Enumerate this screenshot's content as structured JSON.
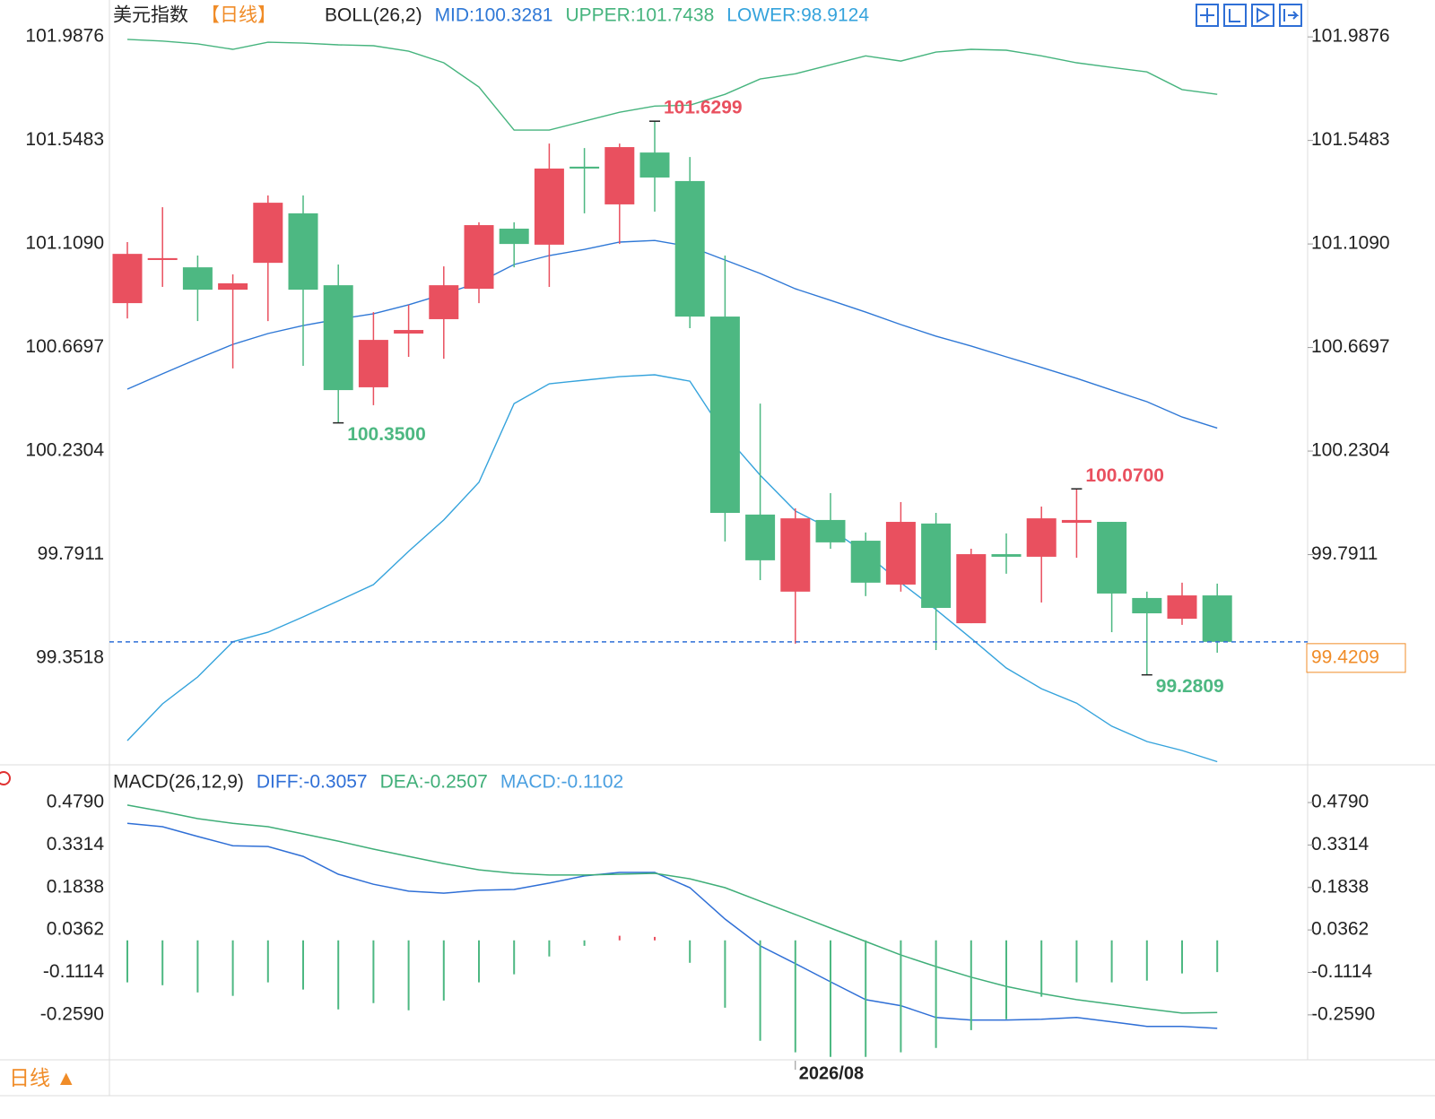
{
  "header": {
    "symbol": "美元指数",
    "period": "【日线】"
  },
  "period_button": "日线 ▲",
  "chart_data": [
    {
      "type": "candlestick",
      "indicator": "BOLL(26,2)",
      "categories": [
        null,
        null,
        null,
        null,
        null,
        null,
        null,
        null,
        null,
        null,
        null,
        null,
        null,
        null,
        null,
        null,
        null,
        null,
        null,
        "2026/08",
        null,
        null,
        null,
        null,
        null,
        null,
        null,
        null,
        null,
        null,
        null,
        null
      ],
      "open": [
        100.858,
        101.041,
        101.01,
        100.915,
        101.029,
        101.239,
        100.934,
        100.501,
        100.729,
        100.79,
        100.919,
        101.174,
        101.106,
        101.437,
        101.277,
        101.497,
        101.376,
        100.801,
        99.961,
        99.634,
        99.938,
        99.85,
        99.664,
        99.923,
        99.5,
        99.793,
        99.782,
        99.926,
        99.93,
        99.607,
        99.519,
        99.618
      ],
      "high": [
        101.117,
        101.265,
        101.06,
        100.98,
        101.315,
        101.315,
        101.022,
        100.82,
        100.851,
        101.014,
        101.201,
        101.201,
        101.535,
        101.516,
        101.535,
        101.6299,
        101.478,
        101.06,
        100.432,
        99.987,
        100.052,
        99.885,
        100.014,
        99.968,
        99.816,
        99.881,
        99.995,
        100.07,
        99.93,
        99.634,
        99.672,
        99.668
      ],
      "low": [
        100.793,
        100.927,
        100.782,
        100.581,
        100.782,
        100.592,
        100.35,
        100.425,
        100.63,
        100.622,
        100.858,
        101.01,
        100.927,
        101.239,
        101.109,
        101.246,
        100.752,
        99.847,
        99.683,
        99.413,
        99.816,
        99.615,
        99.634,
        99.386,
        99.5,
        99.71,
        99.588,
        99.778,
        99.462,
        99.2809,
        99.493,
        99.375
      ],
      "close": [
        101.067,
        101.049,
        100.915,
        100.942,
        101.284,
        100.915,
        100.489,
        100.702,
        100.744,
        100.934,
        101.189,
        101.109,
        101.429,
        101.429,
        101.52,
        101.391,
        100.801,
        99.968,
        99.767,
        99.945,
        99.843,
        99.672,
        99.93,
        99.565,
        99.793,
        99.782,
        99.945,
        99.938,
        99.626,
        99.542,
        99.618,
        99.4209
      ],
      "up_color": "#e9505f",
      "down_color": "#4db882",
      "series": [
        {
          "name": "MID:100.3281",
          "color": "#2f78d6",
          "values": [
            100.493,
            100.558,
            100.622,
            100.683,
            100.729,
            100.763,
            100.79,
            100.813,
            100.851,
            100.896,
            100.946,
            101.022,
            101.06,
            101.086,
            101.117,
            101.124,
            101.098,
            101.041,
            100.984,
            100.919,
            100.87,
            100.82,
            100.767,
            100.718,
            100.676,
            100.63,
            100.585,
            100.539,
            100.489,
            100.44,
            100.375,
            100.3281
          ]
        },
        {
          "name": "UPPER:101.7438",
          "color": "#46b47e",
          "values": [
            101.977,
            101.97,
            101.958,
            101.935,
            101.965,
            101.961,
            101.954,
            101.95,
            101.927,
            101.878,
            101.775,
            101.592,
            101.592,
            101.63,
            101.668,
            101.694,
            101.698,
            101.744,
            101.809,
            101.831,
            101.869,
            101.907,
            101.885,
            101.923,
            101.935,
            101.931,
            101.907,
            101.878,
            101.858,
            101.839,
            101.764,
            101.7438
          ]
        },
        {
          "name": "LOWER:98.9124",
          "color": "#35a3dc",
          "values": [
            99.002,
            99.158,
            99.272,
            99.421,
            99.462,
            99.527,
            99.595,
            99.664,
            99.805,
            99.938,
            100.098,
            100.432,
            100.516,
            100.531,
            100.546,
            100.554,
            100.527,
            100.299,
            100.128,
            99.976,
            99.9,
            99.797,
            99.672,
            99.558,
            99.436,
            99.31,
            99.222,
            99.161,
            99.063,
            98.998,
            98.96,
            98.9124
          ]
        }
      ],
      "annotations": [
        101.6299,
        {
          "value": 100.35,
          "label": "100.3500"
        },
        {
          "value": 100.07,
          "label": "100.0700"
        },
        99.2809
      ],
      "price_line_color": "#2f6fd6",
      "price_box_color": "#f08c28",
      "ylim": [
        98.903,
        102.03
      ],
      "yticks": [
        101.9876,
        101.5483,
        {
          "value": 101.109,
          "label": "101.1090"
        },
        100.6697,
        100.2304,
        99.7911,
        99.3518
      ],
      "grid": false
    },
    {
      "type": "macd",
      "title": "MACD(26,12,9)",
      "up_color": "#e9505f",
      "down_color": "#4db882",
      "series": [
        {
          "name": "DIFF:-0.3057",
          "color": "#2f6fd6",
          "style": "line",
          "values": [
            0.407,
            0.395,
            0.361,
            0.329,
            0.326,
            0.292,
            0.23,
            0.195,
            0.171,
            0.164,
            0.174,
            0.177,
            0.199,
            0.224,
            0.236,
            0.236,
            0.183,
            0.074,
            -0.019,
            -0.081,
            -0.144,
            -0.206,
            -0.227,
            -0.268,
            -0.277,
            -0.277,
            -0.274,
            -0.268,
            -0.283,
            -0.299,
            -0.299,
            -0.3057
          ]
        },
        {
          "name": "DEA:-0.2507",
          "color": "#3fae78",
          "style": "line",
          "values": [
            0.47,
            0.448,
            0.423,
            0.407,
            0.395,
            0.37,
            0.345,
            0.317,
            0.292,
            0.267,
            0.245,
            0.233,
            0.227,
            0.227,
            0.23,
            0.233,
            0.214,
            0.183,
            0.136,
            0.09,
            0.043,
            -0.004,
            -0.051,
            -0.091,
            -0.128,
            -0.16,
            -0.185,
            -0.206,
            -0.222,
            -0.238,
            -0.253,
            -0.2507
          ]
        },
        {
          "name": "MACD:-0.1102",
          "color": "#4a9fe0",
          "style": "histogram",
          "values": [
            -0.146,
            -0.156,
            -0.181,
            -0.193,
            -0.146,
            -0.171,
            -0.24,
            -0.218,
            -0.243,
            -0.209,
            -0.146,
            -0.118,
            -0.056,
            -0.019,
            0.016,
            0.012,
            -0.078,
            -0.234,
            -0.349,
            -0.389,
            -0.405,
            -0.405,
            -0.389,
            -0.374,
            -0.312,
            -0.274,
            -0.196,
            -0.146,
            -0.146,
            -0.14,
            -0.115,
            -0.1102
          ]
        }
      ],
      "ylim": [
        -0.409,
        0.582
      ],
      "yticks": [
        {
          "value": 0.479,
          "label": "0.4790"
        },
        0.3314,
        0.1838,
        0.0362,
        -0.1114,
        {
          "value": -0.259,
          "label": "-0.2590"
        }
      ],
      "grid": false
    }
  ]
}
